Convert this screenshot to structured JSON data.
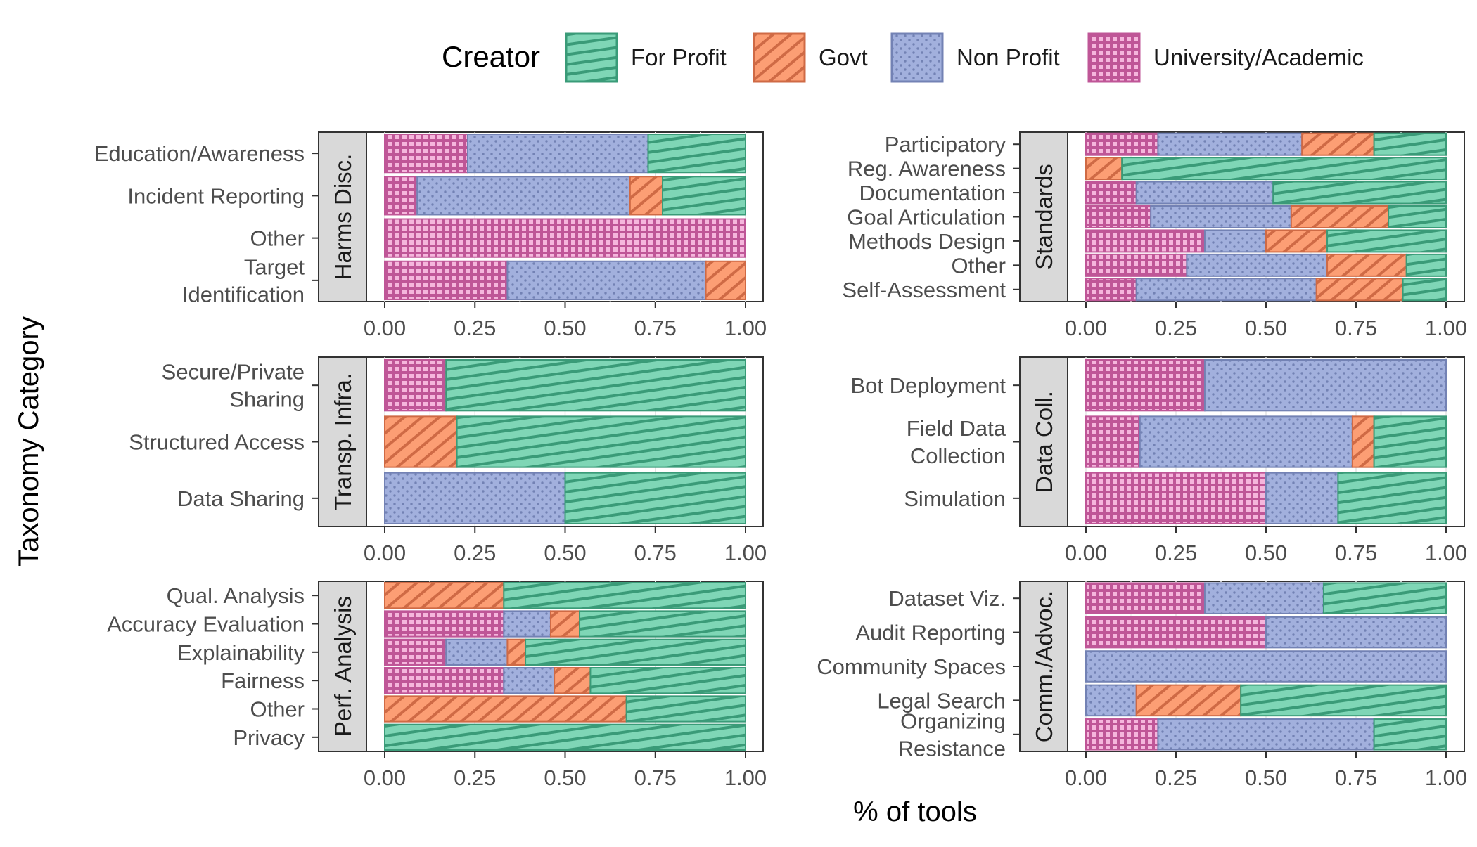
{
  "legend": {
    "title": "Creator",
    "items": [
      {
        "key": "fp",
        "label": "For Profit"
      },
      {
        "key": "gv",
        "label": "Govt"
      },
      {
        "key": "np",
        "label": "Non Profit"
      },
      {
        "key": "ua",
        "label": "University/Academic"
      }
    ]
  },
  "colors": {
    "fp": "#7fd6b6",
    "fp_line": "#3a9b78",
    "gv": "#fc9e74",
    "gv_line": "#cf6a45",
    "np": "#a2b0dd",
    "np_line": "#7382b4",
    "ua": "#e18cc6",
    "ua_line": "#bf5697"
  },
  "axis": {
    "x_title": "% of tools",
    "y_title": "Taxonomy Category",
    "ticks": [
      "0.00",
      "0.25",
      "0.50",
      "0.75",
      "1.00"
    ]
  },
  "chart_data": {
    "type": "bar",
    "orientation": "horizontal",
    "stacked": true,
    "normalized": true,
    "xlim": [
      0,
      1
    ],
    "stack_order": [
      "ua",
      "np",
      "gv",
      "fp"
    ],
    "series_names": {
      "ua": "University/Academic",
      "np": "Non Profit",
      "gv": "Govt",
      "fp": "For Profit"
    },
    "panels": [
      {
        "strip": "Harms Disc.",
        "categories": [
          {
            "label": [
              "Education/Awareness"
            ],
            "ua": 0.23,
            "np": 0.5,
            "gv": 0.0,
            "fp": 0.27
          },
          {
            "label": [
              "Incident Reporting"
            ],
            "ua": 0.09,
            "np": 0.59,
            "gv": 0.09,
            "fp": 0.23
          },
          {
            "label": [
              "Other"
            ],
            "ua": 1.0,
            "np": 0.0,
            "gv": 0.0,
            "fp": 0.0
          },
          {
            "label": [
              "Target",
              "Identification"
            ],
            "ua": 0.34,
            "np": 0.55,
            "gv": 0.11,
            "fp": 0.0
          }
        ]
      },
      {
        "strip": "Standards",
        "categories": [
          {
            "label": [
              "Participatory"
            ],
            "ua": 0.2,
            "np": 0.4,
            "gv": 0.2,
            "fp": 0.2
          },
          {
            "label": [
              "Reg. Awareness"
            ],
            "ua": 0.0,
            "np": 0.0,
            "gv": 0.1,
            "fp": 0.9
          },
          {
            "label": [
              "Documentation"
            ],
            "ua": 0.14,
            "np": 0.38,
            "gv": 0.0,
            "fp": 0.48
          },
          {
            "label": [
              "Goal Articulation"
            ],
            "ua": 0.18,
            "np": 0.39,
            "gv": 0.27,
            "fp": 0.16
          },
          {
            "label": [
              "Methods Design"
            ],
            "ua": 0.33,
            "np": 0.17,
            "gv": 0.17,
            "fp": 0.33
          },
          {
            "label": [
              "Other"
            ],
            "ua": 0.28,
            "np": 0.39,
            "gv": 0.22,
            "fp": 0.11
          },
          {
            "label": [
              "Self-Assessment"
            ],
            "ua": 0.14,
            "np": 0.5,
            "gv": 0.24,
            "fp": 0.12
          }
        ]
      },
      {
        "strip": "Transp. Infra.",
        "categories": [
          {
            "label": [
              "Secure/Private",
              "Sharing"
            ],
            "ua": 0.17,
            "np": 0.0,
            "gv": 0.0,
            "fp": 0.83
          },
          {
            "label": [
              "Structured Access"
            ],
            "ua": 0.0,
            "np": 0.0,
            "gv": 0.2,
            "fp": 0.8
          },
          {
            "label": [
              "Data Sharing"
            ],
            "ua": 0.0,
            "np": 0.5,
            "gv": 0.0,
            "fp": 0.5
          }
        ]
      },
      {
        "strip": "Data Coll.",
        "categories": [
          {
            "label": [
              "Bot Deployment"
            ],
            "ua": 0.33,
            "np": 0.67,
            "gv": 0.0,
            "fp": 0.0
          },
          {
            "label": [
              "Field Data",
              "Collection"
            ],
            "ua": 0.15,
            "np": 0.59,
            "gv": 0.06,
            "fp": 0.2
          },
          {
            "label": [
              "Simulation"
            ],
            "ua": 0.5,
            "np": 0.2,
            "gv": 0.0,
            "fp": 0.3
          }
        ]
      },
      {
        "strip": "Perf. Analysis",
        "categories": [
          {
            "label": [
              "Qual. Analysis"
            ],
            "ua": 0.0,
            "np": 0.0,
            "gv": 0.33,
            "fp": 0.67
          },
          {
            "label": [
              "Accuracy Evaluation"
            ],
            "ua": 0.33,
            "np": 0.13,
            "gv": 0.08,
            "fp": 0.46
          },
          {
            "label": [
              "Explainability"
            ],
            "ua": 0.17,
            "np": 0.17,
            "gv": 0.05,
            "fp": 0.61
          },
          {
            "label": [
              "Fairness"
            ],
            "ua": 0.33,
            "np": 0.14,
            "gv": 0.1,
            "fp": 0.43
          },
          {
            "label": [
              "Other"
            ],
            "ua": 0.0,
            "np": 0.0,
            "gv": 0.67,
            "fp": 0.33
          },
          {
            "label": [
              "Privacy"
            ],
            "ua": 0.0,
            "np": 0.0,
            "gv": 0.0,
            "fp": 1.0
          }
        ]
      },
      {
        "strip": "Comm./Advoc.",
        "categories": [
          {
            "label": [
              "Dataset Viz."
            ],
            "ua": 0.33,
            "np": 0.33,
            "gv": 0.0,
            "fp": 0.34
          },
          {
            "label": [
              "Audit Reporting"
            ],
            "ua": 0.5,
            "np": 0.5,
            "gv": 0.0,
            "fp": 0.0
          },
          {
            "label": [
              "Community Spaces"
            ],
            "ua": 0.0,
            "np": 1.0,
            "gv": 0.0,
            "fp": 0.0
          },
          {
            "label": [
              "Legal Search"
            ],
            "ua": 0.0,
            "np": 0.14,
            "gv": 0.29,
            "fp": 0.57
          },
          {
            "label": [
              "Organizing",
              "Resistance"
            ],
            "ua": 0.2,
            "np": 0.6,
            "gv": 0.0,
            "fp": 0.2
          }
        ]
      }
    ]
  }
}
